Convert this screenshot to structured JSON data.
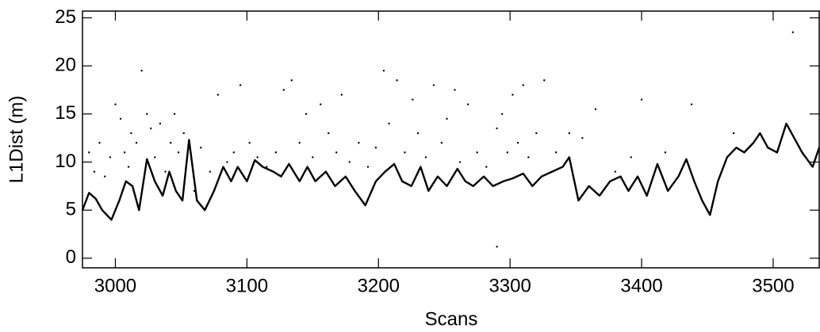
{
  "chart_data": {
    "type": "line",
    "x_label": "Scans",
    "y_label": "L1Dist (m)",
    "xlim": [
      2975,
      3535
    ],
    "ylim": [
      -1,
      25.7
    ],
    "xticks": [
      3000,
      3100,
      3200,
      3300,
      3400,
      3500
    ],
    "yticks": [
      0,
      5,
      10,
      15,
      20,
      25
    ],
    "color": "#000000",
    "x": [
      2975,
      2980,
      2985,
      2990,
      2997,
      3003,
      3008,
      3013,
      3018,
      3024,
      3030,
      3036,
      3041,
      3046,
      3051,
      3056,
      3062,
      3068,
      3075,
      3082,
      3088,
      3093,
      3100,
      3106,
      3112,
      3120,
      3126,
      3132,
      3140,
      3146,
      3152,
      3160,
      3167,
      3175,
      3182,
      3190,
      3198,
      3205,
      3212,
      3218,
      3225,
      3232,
      3238,
      3245,
      3252,
      3260,
      3266,
      3272,
      3280,
      3287,
      3295,
      3302,
      3310,
      3317,
      3324,
      3332,
      3340,
      3345,
      3352,
      3360,
      3368,
      3376,
      3384,
      3390,
      3397,
      3404,
      3412,
      3420,
      3428,
      3434,
      3440,
      3446,
      3452,
      3458,
      3465,
      3472,
      3478,
      3485,
      3490,
      3496,
      3503,
      3510,
      3516,
      3522,
      3530,
      3535
    ],
    "values": [
      5,
      6.8,
      6.2,
      5,
      4,
      6,
      8,
      7.5,
      5,
      10.3,
      8,
      6.5,
      9,
      7,
      6,
      12.3,
      6,
      5,
      7,
      9.5,
      8,
      9.5,
      8,
      10.2,
      9.5,
      9,
      8.5,
      9.8,
      8,
      9.5,
      8,
      9,
      7.5,
      8.5,
      7,
      5.5,
      8,
      9,
      9.8,
      8,
      7.5,
      9.5,
      7,
      8.5,
      7.5,
      9.3,
      8,
      7.5,
      8.5,
      7.5,
      8,
      8.3,
      8.8,
      7.5,
      8.5,
      9,
      9.5,
      10.5,
      6,
      7.5,
      6.5,
      8,
      8.5,
      7,
      8.5,
      6.5,
      9.8,
      7,
      8.5,
      10.3,
      8,
      6,
      4.5,
      8,
      10.5,
      11.5,
      11,
      12,
      13,
      11.5,
      11,
      14,
      12.5,
      11,
      9.5,
      11.5
    ],
    "scatter": {
      "x": [
        2980,
        2984,
        2988,
        2992,
        2996,
        3000,
        3004,
        3007,
        3010,
        3012,
        3016,
        3020,
        3024,
        3027,
        3030,
        3034,
        3038,
        3042,
        3045,
        3048,
        3052,
        3060,
        3065,
        3072,
        3078,
        3085,
        3090,
        3095,
        3102,
        3108,
        3115,
        3122,
        3128,
        3134,
        3140,
        3145,
        3150,
        3156,
        3162,
        3168,
        3172,
        3178,
        3185,
        3192,
        3198,
        3204,
        3208,
        3214,
        3220,
        3226,
        3230,
        3236,
        3242,
        3248,
        3252,
        3258,
        3262,
        3268,
        3275,
        3282,
        3290,
        3294,
        3298,
        3302,
        3306,
        3310,
        3314,
        3320,
        3326,
        3335,
        3345,
        3355,
        3365,
        3380,
        3392,
        3400,
        3418,
        3438,
        3470,
        3515,
        3290
      ],
      "y": [
        11,
        9,
        12,
        8.5,
        10.5,
        16,
        14.5,
        11,
        9.5,
        13,
        12,
        19.5,
        15,
        13.5,
        10.5,
        14,
        9,
        12,
        15,
        11,
        13,
        7,
        11.5,
        9,
        17,
        10,
        11,
        18,
        12,
        10.5,
        9.5,
        11,
        17.5,
        18.5,
        12,
        15,
        10.5,
        16,
        13,
        11,
        17,
        10,
        12,
        9.5,
        11.5,
        19.5,
        14,
        18.5,
        11,
        16.5,
        13,
        10.5,
        18,
        12,
        14.5,
        17.5,
        10,
        16,
        11,
        9.5,
        13.5,
        15,
        11,
        17,
        12,
        18,
        10.5,
        13,
        18.5,
        11,
        13,
        12.5,
        15.5,
        9,
        10.5,
        16.5,
        11,
        16,
        13,
        23.5,
        1.2
      ]
    }
  }
}
